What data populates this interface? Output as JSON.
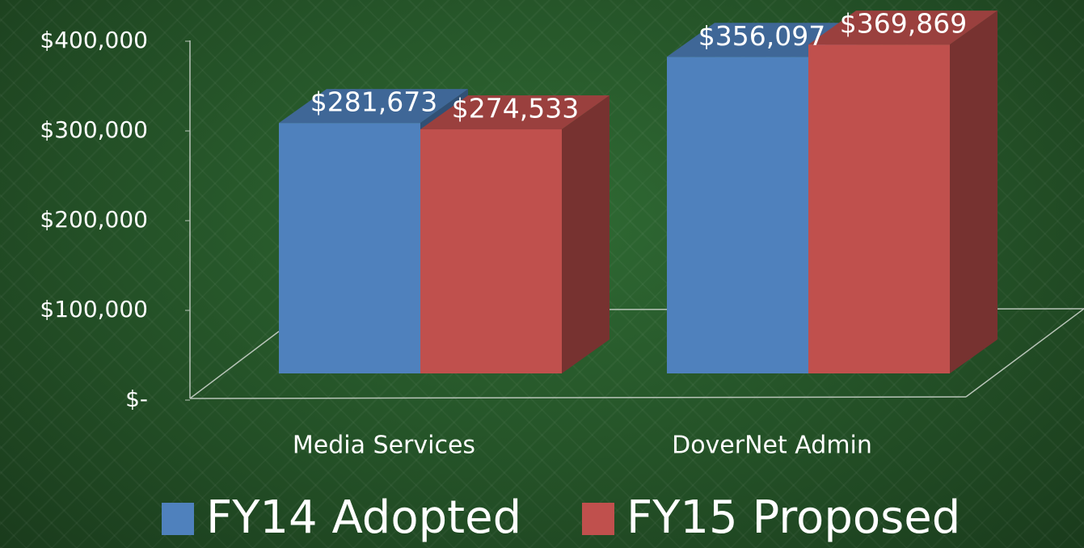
{
  "chart_data": {
    "type": "bar3d",
    "categories": [
      "Media Services",
      "DoverNet Admin"
    ],
    "series": [
      {
        "name": "FY14 Adopted",
        "color": "#4f81bd",
        "values": [
          281673,
          356097
        ],
        "value_labels": [
          "$281,673",
          "$356,097"
        ]
      },
      {
        "name": "FY15 Proposed",
        "color": "#c0504d",
        "values": [
          274533,
          369869
        ],
        "value_labels": [
          "$274,533",
          "$369,869"
        ]
      }
    ],
    "ylim": [
      0,
      400000
    ],
    "yticks": [
      {
        "value": 0,
        "label": "$-"
      },
      {
        "value": 100000,
        "label": "$100,000"
      },
      {
        "value": 200000,
        "label": "$200,000"
      },
      {
        "value": 300000,
        "label": "$300,000"
      },
      {
        "value": 400000,
        "label": "$400,000"
      }
    ],
    "legend": "bottom"
  }
}
